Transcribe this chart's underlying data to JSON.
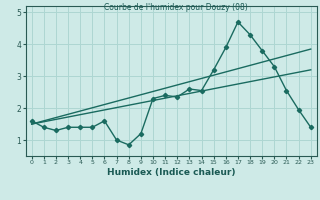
{
  "title": "Courbe de l'humidex pour Douzy (08)",
  "xlabel": "Humidex (Indice chaleur)",
  "ylabel": "",
  "bg_color": "#ceeae7",
  "grid_color": "#add6d2",
  "line_color": "#1a6b60",
  "x_data": [
    0,
    1,
    2,
    3,
    4,
    5,
    6,
    7,
    8,
    9,
    10,
    11,
    12,
    13,
    14,
    15,
    16,
    17,
    18,
    19,
    20,
    21,
    22,
    23
  ],
  "y_data": [
    1.6,
    1.4,
    1.3,
    1.4,
    1.4,
    1.4,
    1.6,
    1.0,
    0.85,
    1.2,
    2.3,
    2.4,
    2.35,
    2.6,
    2.55,
    3.2,
    3.9,
    4.7,
    4.3,
    3.8,
    3.3,
    2.55,
    1.95,
    1.4
  ],
  "ylim": [
    0.5,
    5.2
  ],
  "xlim": [
    -0.5,
    23.5
  ],
  "yticks": [
    1,
    2,
    3,
    4,
    5
  ],
  "xticks": [
    0,
    1,
    2,
    3,
    4,
    5,
    6,
    7,
    8,
    9,
    10,
    11,
    12,
    13,
    14,
    15,
    16,
    17,
    18,
    19,
    20,
    21,
    22,
    23
  ],
  "trend1_x": [
    0,
    23
  ],
  "trend1_y": [
    1.5,
    3.85
  ],
  "trend2_x": [
    0,
    23
  ],
  "trend2_y": [
    1.5,
    3.2
  ]
}
